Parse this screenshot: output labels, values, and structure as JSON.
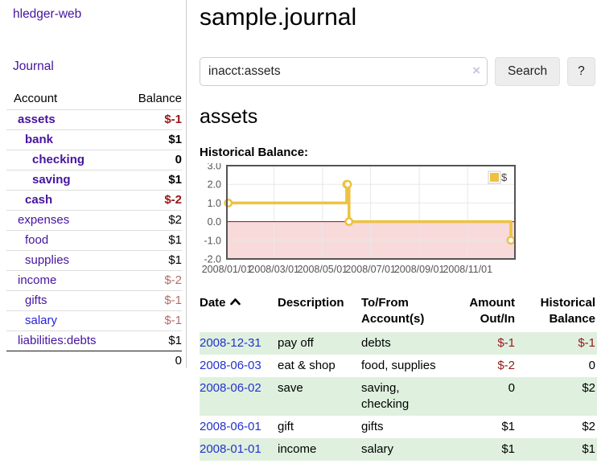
{
  "app_title": "hledger-web",
  "sidebar": {
    "journal_link": "Journal",
    "accounts": {
      "header_account": "Account",
      "header_balance": "Balance",
      "rows": [
        {
          "name": "assets",
          "balance": "$-1",
          "depth": 0,
          "bold": true,
          "tone": "strong",
          "link": "purple"
        },
        {
          "name": "bank",
          "balance": "$1",
          "depth": 1,
          "bold": true,
          "tone": "normal",
          "link": "purple"
        },
        {
          "name": "checking",
          "balance": "0",
          "depth": 2,
          "bold": true,
          "tone": "normal",
          "link": "purple"
        },
        {
          "name": "saving",
          "balance": "$1",
          "depth": 2,
          "bold": true,
          "tone": "normal",
          "link": "purple"
        },
        {
          "name": "cash",
          "balance": "$-2",
          "depth": 1,
          "bold": true,
          "tone": "strong",
          "link": "purple"
        },
        {
          "name": "expenses",
          "balance": "$2",
          "depth": 0,
          "bold": false,
          "tone": "normal",
          "link": "purple"
        },
        {
          "name": "food",
          "balance": "$1",
          "depth": 1,
          "bold": false,
          "tone": "normal",
          "link": "purple"
        },
        {
          "name": "supplies",
          "balance": "$1",
          "depth": 1,
          "bold": false,
          "tone": "normal",
          "link": "purple"
        },
        {
          "name": "income",
          "balance": "$-2",
          "depth": 0,
          "bold": false,
          "tone": "soft",
          "link": "purple"
        },
        {
          "name": "gifts",
          "balance": "$-1",
          "depth": 1,
          "bold": false,
          "tone": "soft",
          "link": "purple"
        },
        {
          "name": "salary",
          "balance": "$-1",
          "depth": 1,
          "bold": false,
          "tone": "soft",
          "link": "blue"
        },
        {
          "name": "liabilities:debts",
          "balance": "$1",
          "depth": 0,
          "bold": false,
          "tone": "normal",
          "link": "purple"
        }
      ],
      "total": "0"
    }
  },
  "main": {
    "title": "sample.journal",
    "search": {
      "value": "inacct:assets",
      "clear_label": "×",
      "search_button": "Search",
      "help_button": "?"
    },
    "account_heading": "assets",
    "section_label": "Historical Balance:"
  },
  "register": {
    "headers": {
      "date": "Date",
      "description": "Description",
      "accounts": "To/From\nAccount(s)",
      "amount": "Amount\nOut/In",
      "balance": "Historical\nBalance"
    },
    "rows": [
      {
        "date": "2008-12-31",
        "description": "pay off",
        "accounts": "debts",
        "amount": "$-1",
        "balance": "$-1",
        "stripe": true
      },
      {
        "date": "2008-06-03",
        "description": "eat & shop",
        "accounts": "food, supplies",
        "amount": "$-2",
        "balance": "0",
        "stripe": false
      },
      {
        "date": "2008-06-02",
        "description": "save",
        "accounts": "saving, checking",
        "amount": "0",
        "balance": "$2",
        "stripe": true
      },
      {
        "date": "2008-06-01",
        "description": "gift",
        "accounts": "gifts",
        "amount": "$1",
        "balance": "$2",
        "stripe": false
      },
      {
        "date": "2008-01-01",
        "description": "income",
        "accounts": "salary",
        "amount": "$1",
        "balance": "$1",
        "stripe": true
      }
    ]
  },
  "chart_data": {
    "type": "line",
    "title": "Historical Balance:",
    "step": true,
    "legend": "$",
    "legend_position": "top-right",
    "grid": true,
    "ylim": [
      -2.0,
      3.0
    ],
    "yticks": [
      3.0,
      2.0,
      1.0,
      0.0,
      -1.0,
      -2.0
    ],
    "xticks": [
      {
        "label": "2008/01/01",
        "x": 0.0
      },
      {
        "label": "2008/03/01",
        "x": 0.164
      },
      {
        "label": "2008/05/01",
        "x": 0.332
      },
      {
        "label": "2008/07/01",
        "x": 0.499
      },
      {
        "label": "2008/09/01",
        "x": 0.668
      },
      {
        "label": "2008/11/01",
        "x": 0.836
      }
    ],
    "series": [
      {
        "name": "$",
        "color": "#edc240",
        "points": [
          {
            "date": "2008-01-01",
            "x": 0.005,
            "y": 1
          },
          {
            "date": "2008-06-01",
            "x": 0.416,
            "y": 2
          },
          {
            "date": "2008-06-02",
            "x": 0.419,
            "y": 2
          },
          {
            "date": "2008-06-03",
            "x": 0.424,
            "y": 0
          },
          {
            "date": "2008-12-31",
            "x": 0.986,
            "y": -1
          }
        ]
      }
    ],
    "colors": {
      "negative_region": "#f9dada",
      "zero_line": "#8b1414",
      "plot_border": "#545454",
      "gridline": "#e8e8e8",
      "tick_text": "#545454"
    }
  }
}
